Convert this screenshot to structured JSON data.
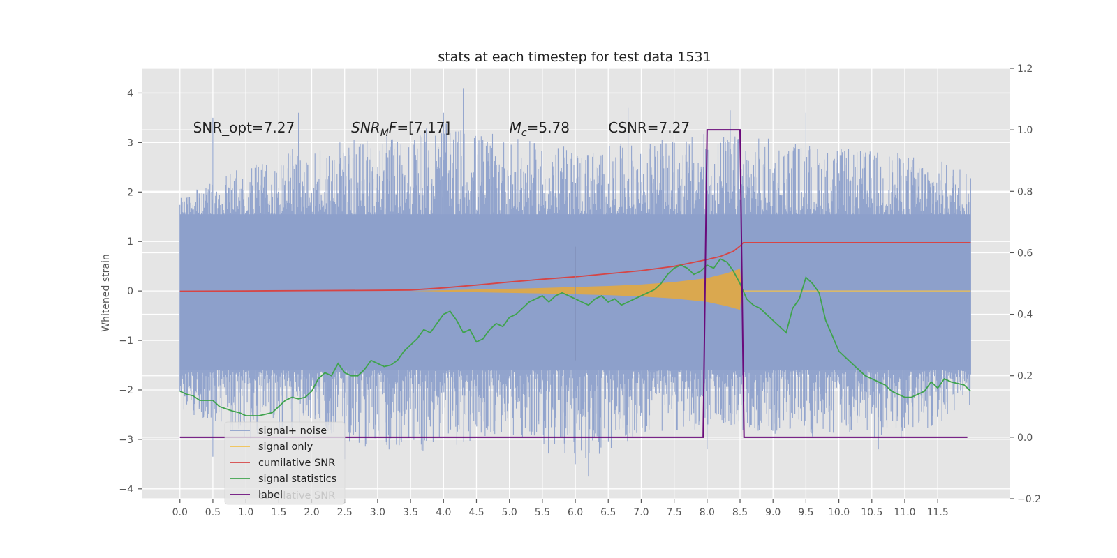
{
  "chart_data": {
    "type": "line",
    "title": "stats at each timestep for test data 1531",
    "ylabel": "Whitened strain",
    "xlim": [
      -0.58,
      12.6
    ],
    "ylim": [
      -4.2,
      4.5
    ],
    "y2lim": [
      -0.2,
      1.2
    ],
    "x_ticks": [
      0.0,
      0.5,
      1.0,
      1.5,
      2.0,
      2.5,
      3.0,
      3.5,
      4.0,
      4.5,
      5.0,
      5.5,
      6.0,
      6.5,
      7.0,
      7.5,
      8.0,
      8.5,
      9.0,
      9.5,
      10.0,
      10.5,
      11.0,
      11.5
    ],
    "x_tick_labels": [
      "0.0",
      "0.5",
      "1.0",
      "1.5",
      "2.0",
      "2.5",
      "3.0",
      "3.5",
      "4.0",
      "4.5",
      "5.0",
      "5.5",
      "6.0",
      "6.5",
      "7.0",
      "7.5",
      "8.0",
      "8.5",
      "9.0",
      "9.5",
      "10.0",
      "10.5",
      "11.0",
      "11.5"
    ],
    "y_ticks": [
      -4,
      -3,
      -2,
      -1,
      0,
      1,
      2,
      3,
      4
    ],
    "y_tick_labels": [
      "−4",
      "−3",
      "−2",
      "−1",
      "0",
      "1",
      "2",
      "3",
      "4"
    ],
    "y2_ticks": [
      -0.2,
      0.0,
      0.2,
      0.4,
      0.6,
      0.8,
      1.0,
      1.2
    ],
    "y2_tick_labels": [
      "−0.2",
      "0.0",
      "0.2",
      "0.4",
      "0.6",
      "0.8",
      "1.0",
      "1.2"
    ],
    "grid": true,
    "legend_position": "lower-left",
    "annotations": [
      {
        "text": "SNR_opt=7.27",
        "x": 0.2,
        "y": 3.3
      },
      {
        "base": "SNR",
        "sub": "M",
        "rest": "F=[7.17]",
        "x": 2.6,
        "y": 3.3
      },
      {
        "base": "M",
        "sub": "c",
        "rest": "=5.78",
        "x": 5.0,
        "y": 3.3
      },
      {
        "text": "CSNR=7.27",
        "x": 6.5,
        "y": 3.3
      }
    ],
    "legend": [
      {
        "label": "signal+ noise",
        "color": "#8da0cb"
      },
      {
        "label": "signal only",
        "color": "#f2c14e"
      },
      {
        "label": "cumilative SNR",
        "color": "#d64545"
      },
      {
        "label": "signal statistics",
        "color": "#3fa34d"
      },
      {
        "label": "label",
        "color": "#6a0a7a"
      }
    ],
    "hidden_legend_text": "cumilative SNR",
    "series": [
      {
        "name": "signal+ noise",
        "axis": "left",
        "color": "#8da0cb",
        "x_range": [
          0.0,
          12.0
        ],
        "envelope_x": [
          0.0,
          1.0,
          2.0,
          3.0,
          4.0,
          5.0,
          6.0,
          7.0,
          8.0,
          9.0,
          10.0,
          11.0,
          12.0
        ],
        "envelope_upper": [
          1.9,
          2.6,
          3.0,
          3.1,
          3.4,
          3.1,
          2.9,
          3.0,
          3.2,
          3.1,
          2.9,
          2.8,
          2.5
        ],
        "envelope_lower": [
          -2.4,
          -3.0,
          -2.7,
          -3.3,
          -3.2,
          -2.9,
          -3.6,
          -2.9,
          -2.8,
          -2.9,
          -3.0,
          -3.0,
          -2.4
        ],
        "peaks": [
          [
            0.5,
            3.5
          ],
          [
            1.8,
            3.6
          ],
          [
            4.0,
            3.6
          ],
          [
            4.3,
            4.1
          ],
          [
            6.8,
            3.7
          ],
          [
            8.35,
            3.65
          ],
          [
            9.5,
            3.6
          ],
          [
            2.5,
            -3.4
          ],
          [
            6.0,
            -3.5
          ],
          [
            6.2,
            -3.75
          ],
          [
            0.5,
            -3.35
          ],
          [
            10.6,
            -3.2
          ],
          [
            8.0,
            -3.2
          ]
        ]
      },
      {
        "name": "signal only",
        "axis": "left",
        "color": "#f2c14e",
        "env_x": [
          3.5,
          4.5,
          5.5,
          6.5,
          7.0,
          7.5,
          8.0,
          8.3,
          8.5,
          8.52
        ],
        "env_y": [
          0.0,
          0.03,
          0.06,
          0.1,
          0.13,
          0.18,
          0.26,
          0.36,
          0.45,
          0.0
        ]
      },
      {
        "name": "cumilative SNR",
        "axis": "right",
        "color": "#d64545",
        "x": [
          0.0,
          1.0,
          2.0,
          3.0,
          3.5,
          4.0,
          4.5,
          5.0,
          5.5,
          6.0,
          6.5,
          7.0,
          7.5,
          8.0,
          8.2,
          8.4,
          8.5,
          8.55,
          12.0
        ],
        "y": [
          0.475,
          0.476,
          0.477,
          0.478,
          0.479,
          0.486,
          0.495,
          0.505,
          0.514,
          0.522,
          0.532,
          0.542,
          0.556,
          0.578,
          0.588,
          0.605,
          0.622,
          0.633,
          0.633
        ]
      },
      {
        "name": "signal statistics",
        "axis": "right",
        "color": "#3fa34d",
        "x": [
          0.0,
          0.1,
          0.2,
          0.3,
          0.4,
          0.5,
          0.6,
          0.8,
          0.9,
          1.0,
          1.2,
          1.4,
          1.5,
          1.6,
          1.7,
          1.8,
          1.9,
          2.0,
          2.1,
          2.2,
          2.3,
          2.4,
          2.5,
          2.6,
          2.7,
          2.8,
          2.9,
          3.0,
          3.1,
          3.2,
          3.3,
          3.4,
          3.5,
          3.6,
          3.7,
          3.8,
          3.9,
          4.0,
          4.1,
          4.2,
          4.3,
          4.4,
          4.5,
          4.6,
          4.7,
          4.8,
          4.9,
          5.0,
          5.1,
          5.2,
          5.3,
          5.4,
          5.5,
          5.6,
          5.7,
          5.8,
          5.9,
          6.0,
          6.1,
          6.2,
          6.3,
          6.4,
          6.5,
          6.6,
          6.7,
          6.8,
          6.9,
          7.0,
          7.1,
          7.2,
          7.3,
          7.4,
          7.5,
          7.6,
          7.7,
          7.8,
          7.9,
          8.0,
          8.1,
          8.2,
          8.3,
          8.4,
          8.5,
          8.6,
          8.7,
          8.8,
          8.9,
          9.0,
          9.1,
          9.2,
          9.3,
          9.4,
          9.5,
          9.6,
          9.7,
          9.8,
          9.9,
          10.0,
          10.1,
          10.2,
          10.3,
          10.4,
          10.5,
          10.6,
          10.7,
          10.8,
          10.9,
          11.0,
          11.1,
          11.2,
          11.3,
          11.4,
          11.5,
          11.6,
          11.7,
          11.8,
          11.9,
          12.0
        ],
        "y": [
          0.15,
          0.14,
          0.135,
          0.12,
          0.12,
          0.12,
          0.1,
          0.085,
          0.08,
          0.07,
          0.07,
          0.08,
          0.1,
          0.12,
          0.13,
          0.125,
          0.13,
          0.15,
          0.19,
          0.21,
          0.2,
          0.24,
          0.21,
          0.2,
          0.2,
          0.22,
          0.25,
          0.24,
          0.23,
          0.235,
          0.25,
          0.28,
          0.3,
          0.32,
          0.35,
          0.34,
          0.37,
          0.4,
          0.41,
          0.38,
          0.34,
          0.35,
          0.31,
          0.32,
          0.35,
          0.37,
          0.36,
          0.39,
          0.4,
          0.42,
          0.44,
          0.45,
          0.46,
          0.44,
          0.46,
          0.47,
          0.46,
          0.45,
          0.44,
          0.43,
          0.45,
          0.46,
          0.44,
          0.45,
          0.43,
          0.44,
          0.45,
          0.46,
          0.47,
          0.48,
          0.5,
          0.53,
          0.55,
          0.56,
          0.55,
          0.53,
          0.54,
          0.56,
          0.55,
          0.58,
          0.57,
          0.54,
          0.5,
          0.45,
          0.43,
          0.42,
          0.4,
          0.38,
          0.36,
          0.34,
          0.42,
          0.45,
          0.52,
          0.5,
          0.47,
          0.38,
          0.33,
          0.28,
          0.26,
          0.24,
          0.22,
          0.2,
          0.19,
          0.18,
          0.17,
          0.15,
          0.14,
          0.13,
          0.13,
          0.14,
          0.15,
          0.18,
          0.16,
          0.19,
          0.18,
          0.175,
          0.17,
          0.15
        ],
        "spike": {
          "x": 6.0,
          "y_top": 0.62,
          "y_bottom": 0.25
        }
      },
      {
        "name": "label",
        "axis": "right",
        "color": "#6a0a7a",
        "x": [
          0.0,
          7.94,
          8.0,
          8.5,
          8.56,
          11.95
        ],
        "y": [
          0.0,
          0.0,
          1.0,
          1.0,
          0.0,
          0.0
        ]
      }
    ]
  }
}
